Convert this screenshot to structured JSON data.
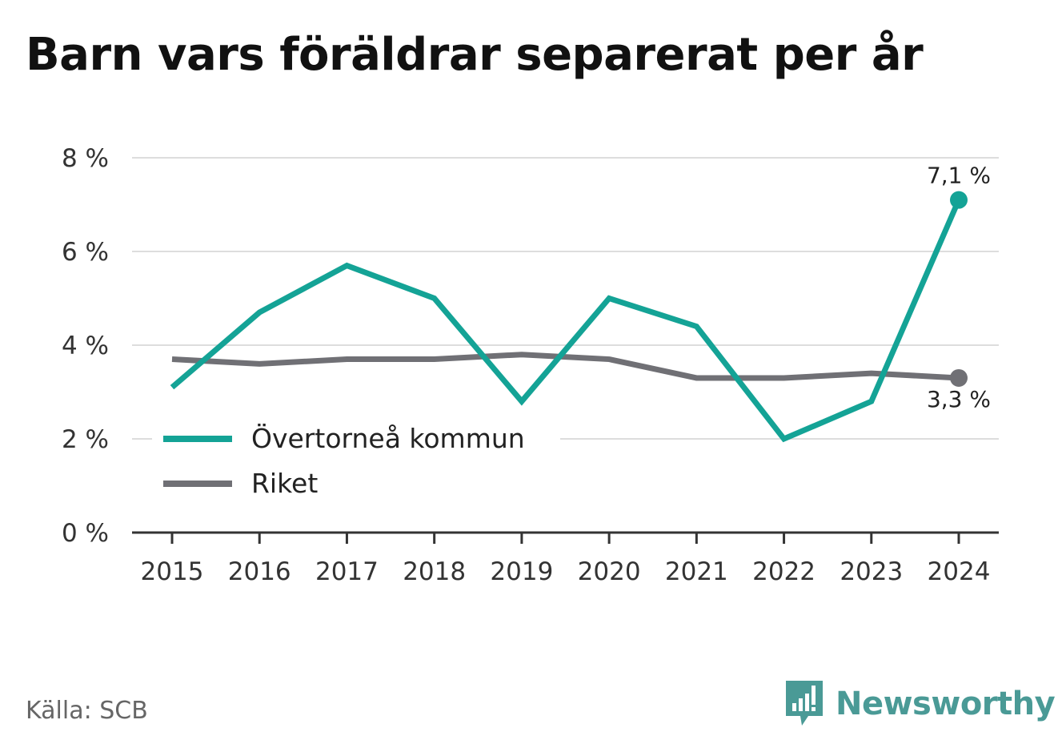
{
  "title": "Barn vars föräldrar separerat per år",
  "source": "Källa: SCB",
  "brand": {
    "name": "Newsworthy",
    "logo_icon": "newsworthy-logo-icon",
    "color": "#4a9a96"
  },
  "chart_data": {
    "type": "line",
    "categories": [
      "2015",
      "2016",
      "2017",
      "2018",
      "2019",
      "2020",
      "2021",
      "2022",
      "2023",
      "2024"
    ],
    "ylim": [
      0,
      8
    ],
    "yticks": [
      0,
      2,
      4,
      6,
      8
    ],
    "ytick_labels": [
      "0 %",
      "2 %",
      "4 %",
      "6 %",
      "8 %"
    ],
    "grid": true,
    "legend_position": "bottom-left",
    "series": [
      {
        "name": "Övertorneå kommun",
        "color": "#14a396",
        "values": [
          3.1,
          4.7,
          5.7,
          5.0,
          2.8,
          5.0,
          4.4,
          2.0,
          2.8,
          7.1
        ],
        "end_label": "7,1 %"
      },
      {
        "name": "Riket",
        "color": "#707075",
        "values": [
          3.7,
          3.6,
          3.7,
          3.7,
          3.8,
          3.7,
          3.3,
          3.3,
          3.4,
          3.3
        ],
        "end_label": "3,3 %"
      }
    ]
  }
}
